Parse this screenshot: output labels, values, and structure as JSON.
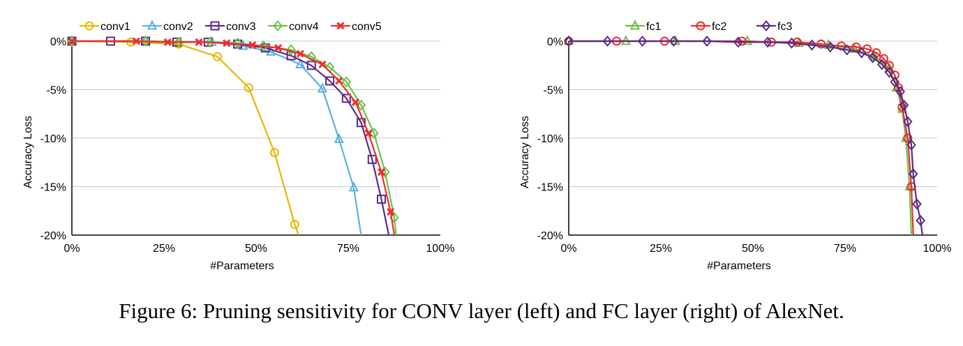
{
  "caption": "Figure 6: Pruning sensitivity for CONV layer (left) and FC layer (right) of AlexNet.",
  "colors": {
    "conv1": "#e6b800",
    "conv2": "#5ab1e0",
    "conv3": "#5b2a86",
    "conv4": "#6cc04a",
    "conv5": "#ee2b2b",
    "fc1": "#6cc04a",
    "fc2": "#ee2b2b",
    "fc3": "#5b2a86"
  },
  "chart_data": [
    {
      "type": "line",
      "title": "",
      "xlabel": "#Parameters",
      "ylabel": "Accuracy Loss",
      "xlim": [
        0,
        100
      ],
      "ylim": [
        -20,
        0
      ],
      "x_ticks": [
        "0%",
        "25%",
        "50%",
        "75%",
        "100%"
      ],
      "y_ticks": [
        "0%",
        "-5%",
        "-10%",
        "-15%",
        "-20%"
      ],
      "legend_position": "top",
      "series": [
        {
          "name": "conv1",
          "marker": "circle",
          "x": [
            0,
            16,
            29,
            39.5,
            48,
            55,
            60.5,
            61.5
          ],
          "y": [
            0,
            -0.1,
            -0.3,
            -1.6,
            -4.8,
            -11.5,
            -18.9,
            -20
          ]
        },
        {
          "name": "conv2",
          "marker": "triangle",
          "x": [
            0,
            20,
            38,
            46.5,
            54,
            62,
            68,
            72.5,
            76.5,
            78.5
          ],
          "y": [
            0,
            0,
            -0.1,
            -0.5,
            -1.1,
            -2.4,
            -4.9,
            -10.1,
            -15.1,
            -20
          ]
        },
        {
          "name": "conv3",
          "marker": "square",
          "x": [
            0,
            10.5,
            20,
            28.5,
            37,
            45,
            52.5,
            59.5,
            65,
            70,
            74.5,
            78.5,
            81.5,
            84,
            86
          ],
          "y": [
            0,
            0,
            0,
            -0.1,
            -0.1,
            -0.3,
            -0.7,
            -1.5,
            -2.5,
            -4.1,
            -5.9,
            -8.4,
            -12.2,
            -16.3,
            -20
          ]
        },
        {
          "name": "conv4",
          "marker": "diamond",
          "x": [
            0,
            20,
            29,
            37.5,
            45,
            52,
            59.5,
            65,
            70,
            74.5,
            78.5,
            82,
            85,
            87.5,
            88
          ],
          "y": [
            0,
            0,
            -0.1,
            -0.1,
            -0.2,
            -0.5,
            -0.9,
            -1.6,
            -2.7,
            -4.2,
            -6.6,
            -9.5,
            -13.5,
            -18.2,
            -20
          ]
        },
        {
          "name": "conv5",
          "marker": "x",
          "x": [
            0,
            17.5,
            26,
            34.5,
            42,
            49,
            56,
            62,
            68,
            72.5,
            77,
            80.5,
            84,
            86.5,
            87.5
          ],
          "y": [
            0,
            0,
            -0.1,
            -0.1,
            -0.2,
            -0.4,
            -0.7,
            -1.3,
            -2.4,
            -4.1,
            -6.3,
            -9.5,
            -13.5,
            -17.6,
            -20
          ]
        }
      ]
    },
    {
      "type": "line",
      "title": "",
      "xlabel": "#Parameters",
      "ylabel": "Accuracy Loss",
      "xlim": [
        0,
        100
      ],
      "ylim": [
        -20,
        0
      ],
      "x_ticks": [
        "0%",
        "25%",
        "50%",
        "75%",
        "100%"
      ],
      "y_ticks": [
        "0%",
        "-5%",
        "-10%",
        "-15%",
        "-20%"
      ],
      "legend_position": "top",
      "series": [
        {
          "name": "fc1",
          "marker": "triangle",
          "x": [
            0,
            15.5,
            29,
            48.5,
            62.5,
            70.5,
            77.5,
            83,
            87,
            89,
            90.5,
            91.5,
            92.5,
            93
          ],
          "y": [
            0,
            0,
            0,
            0,
            -0.2,
            -0.4,
            -0.8,
            -1.6,
            -2.8,
            -4.8,
            -7,
            -10,
            -15,
            -20
          ]
        },
        {
          "name": "fc2",
          "marker": "circle",
          "x": [
            0,
            13,
            26,
            47,
            55,
            62,
            68.5,
            74,
            78,
            81,
            83.5,
            85.5,
            87,
            88.5,
            89.5,
            90.5,
            92,
            93,
            93.5
          ],
          "y": [
            0,
            0,
            0,
            0,
            -0.1,
            -0.1,
            -0.3,
            -0.5,
            -0.6,
            -0.8,
            -1.2,
            -1.8,
            -2.5,
            -3.5,
            -4.8,
            -6.8,
            -10,
            -15,
            -20
          ]
        },
        {
          "name": "fc3",
          "marker": "diamond",
          "x": [
            0,
            10.5,
            20,
            28.5,
            37.5,
            46,
            54,
            60.5,
            66,
            71,
            75.5,
            79.5,
            82.5,
            85,
            87,
            88.5,
            90,
            91,
            92,
            93,
            93.5,
            94.5,
            95.5,
            96
          ],
          "y": [
            0,
            0,
            0,
            0,
            0,
            -0.1,
            -0.1,
            -0.2,
            -0.4,
            -0.6,
            -0.9,
            -1.2,
            -1.7,
            -2.4,
            -3.2,
            -4.2,
            -5.2,
            -6.6,
            -8.3,
            -10.7,
            -13.7,
            -16.8,
            -18.5,
            -20
          ]
        }
      ]
    }
  ]
}
